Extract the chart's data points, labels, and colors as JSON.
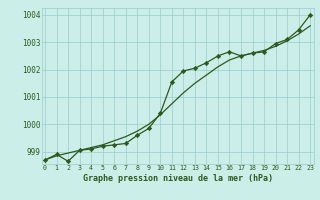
{
  "x": [
    0,
    1,
    2,
    3,
    4,
    5,
    6,
    7,
    8,
    9,
    10,
    11,
    12,
    13,
    14,
    15,
    16,
    17,
    18,
    19,
    20,
    21,
    22,
    23
  ],
  "line_smooth": [
    998.7,
    998.85,
    998.95,
    999.05,
    999.15,
    999.25,
    999.4,
    999.55,
    999.75,
    1000.0,
    1000.35,
    1000.75,
    1001.15,
    1001.5,
    1001.8,
    1002.1,
    1002.35,
    1002.5,
    1002.6,
    1002.7,
    1002.85,
    1003.05,
    1003.3,
    1003.6
  ],
  "line_markers": [
    998.7,
    998.9,
    998.65,
    999.05,
    999.1,
    999.2,
    999.25,
    999.3,
    999.6,
    999.85,
    1000.4,
    1001.55,
    1001.95,
    1002.05,
    1002.25,
    1002.5,
    1002.65,
    1002.5,
    1002.6,
    1002.65,
    1002.95,
    1003.1,
    1003.45,
    1004.0
  ],
  "ylim_min": 998.55,
  "ylim_max": 1004.25,
  "yticks": [
    999,
    1000,
    1001,
    1002,
    1003,
    1004
  ],
  "xticks": [
    0,
    1,
    2,
    3,
    4,
    5,
    6,
    7,
    8,
    9,
    10,
    11,
    12,
    13,
    14,
    15,
    16,
    17,
    18,
    19,
    20,
    21,
    22,
    23
  ],
  "line_color": "#2d5a1b",
  "bg_color": "#cceee8",
  "grid_color": "#99cccc",
  "xlabel": "Graphe pression niveau de la mer (hPa)",
  "marker": "D",
  "marker_size": 2.2,
  "lw": 0.9
}
